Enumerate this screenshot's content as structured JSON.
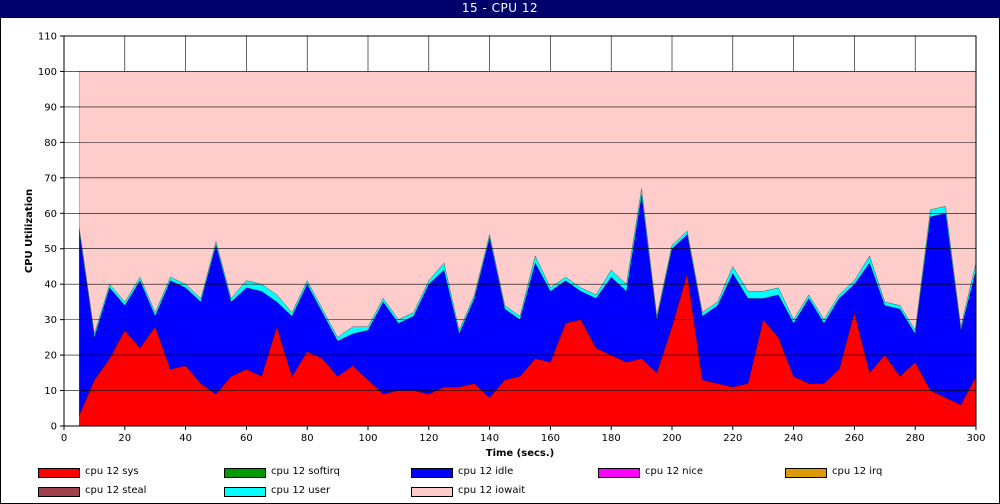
{
  "window": {
    "title": "15 - CPU 12"
  },
  "colors": {
    "sys": "#ff0000",
    "softirq": "#009900",
    "idle": "#0000ff",
    "nice": "#ff00ff",
    "irq": "#dd9900",
    "steal": "#a0404a",
    "user": "#00ffff",
    "iowait": "#ffcccc"
  },
  "legend": [
    {
      "label": "cpu 12 sys",
      "color": "#ff0000"
    },
    {
      "label": "cpu 12 softirq",
      "color": "#009900"
    },
    {
      "label": "cpu 12 idle",
      "color": "#0000ff"
    },
    {
      "label": "cpu 12 nice",
      "color": "#ff00ff"
    },
    {
      "label": "cpu 12 irq",
      "color": "#dd9900"
    },
    {
      "label": "cpu 12 steal",
      "color": "#a0404a"
    },
    {
      "label": "cpu 12 user",
      "color": "#00ffff"
    },
    {
      "label": "cpu 12 iowait",
      "color": "#ffcccc"
    }
  ],
  "chart_data": {
    "type": "area",
    "stacked": true,
    "title": "15 - CPU 12",
    "xlabel": "Time (secs.)",
    "ylabel": "CPU Utilization",
    "xlim": [
      0,
      300
    ],
    "ylim": [
      0,
      110
    ],
    "xticks": [
      0,
      20,
      40,
      60,
      80,
      100,
      120,
      140,
      160,
      180,
      200,
      220,
      240,
      260,
      280,
      300
    ],
    "yticks": [
      0,
      10,
      20,
      30,
      40,
      50,
      60,
      70,
      80,
      90,
      100,
      110
    ],
    "grid": true,
    "legend_position": "bottom",
    "x": [
      5,
      10,
      15,
      20,
      25,
      30,
      35,
      40,
      45,
      50,
      55,
      60,
      65,
      70,
      75,
      80,
      85,
      90,
      95,
      100,
      105,
      110,
      115,
      120,
      125,
      130,
      135,
      140,
      145,
      150,
      155,
      160,
      165,
      170,
      175,
      180,
      185,
      190,
      195,
      200,
      205,
      210,
      215,
      220,
      225,
      230,
      235,
      240,
      245,
      250,
      255,
      260,
      265,
      270,
      275,
      280,
      285,
      290,
      295,
      300
    ],
    "series": [
      {
        "name": "cpu 12 sys",
        "values": [
          3,
          13,
          19,
          27,
          22,
          28,
          16,
          17,
          12,
          9,
          14,
          16,
          14,
          28,
          14,
          21,
          19,
          14,
          17,
          13,
          9,
          10,
          10,
          9,
          11,
          11,
          12,
          8,
          13,
          14,
          19,
          18,
          29,
          30,
          22,
          20,
          18,
          19,
          15,
          28,
          43,
          13,
          12,
          11,
          12,
          30,
          25,
          14,
          12,
          12,
          16,
          32,
          15,
          20,
          14,
          18,
          10,
          8,
          6,
          14
        ]
      },
      {
        "name": "cpu 12 softirq",
        "values": [
          0,
          0,
          0,
          0,
          0,
          0,
          0,
          0,
          0,
          0,
          0,
          0,
          0,
          0,
          0,
          0,
          0,
          0,
          0,
          0,
          0,
          0,
          0,
          0,
          0,
          0,
          0,
          0,
          0,
          0,
          0,
          0,
          0,
          0,
          0,
          0,
          0,
          0,
          0,
          0,
          0,
          0,
          0,
          0,
          0,
          0,
          0,
          0,
          0,
          0,
          0,
          0,
          0,
          0,
          0,
          0,
          0,
          0,
          0,
          0
        ]
      },
      {
        "name": "cpu 12 idle",
        "values": [
          52,
          12,
          20,
          7,
          19,
          3,
          25,
          22,
          23,
          42,
          21,
          23,
          24,
          7,
          17,
          19,
          13,
          10,
          9,
          14,
          26,
          19,
          21,
          31,
          33,
          15,
          24,
          45,
          20,
          16,
          27,
          20,
          12,
          8,
          14,
          22,
          20,
          46,
          15,
          22,
          11,
          18,
          22,
          32,
          24,
          6,
          12,
          15,
          24,
          17,
          20,
          8,
          31,
          14,
          19,
          8,
          49,
          52,
          21,
          30
        ]
      },
      {
        "name": "cpu 12 nice",
        "values": [
          0,
          0,
          0,
          0,
          0,
          0,
          0,
          0,
          0,
          0,
          0,
          0,
          0,
          0,
          0,
          0,
          0,
          0,
          0,
          0,
          0,
          0,
          0,
          0,
          0,
          0,
          0,
          0,
          0,
          0,
          0,
          0,
          0,
          0,
          0,
          0,
          0,
          0,
          0,
          0,
          0,
          0,
          0,
          0,
          0,
          0,
          0,
          0,
          0,
          0,
          0,
          0,
          0,
          0,
          0,
          0,
          0,
          0,
          0,
          0
        ]
      },
      {
        "name": "cpu 12 irq",
        "values": [
          0,
          0,
          0,
          0,
          0,
          0,
          0,
          0,
          0,
          0,
          0,
          0,
          0,
          0,
          0,
          0,
          0,
          0,
          0,
          0,
          0,
          0,
          0,
          0,
          0,
          0,
          0,
          0,
          0,
          0,
          0,
          0,
          0,
          0,
          0,
          0,
          0,
          0,
          0,
          0,
          0,
          0,
          0,
          0,
          0,
          0,
          0,
          0,
          0,
          0,
          0,
          0,
          0,
          0,
          0,
          0,
          0,
          0,
          0,
          0
        ]
      },
      {
        "name": "cpu 12 steal",
        "values": [
          0,
          0,
          0,
          0,
          0,
          0,
          0,
          0,
          0,
          0,
          0,
          0,
          0,
          0,
          0,
          0,
          0,
          0,
          0,
          0,
          0,
          0,
          0,
          0,
          0,
          0,
          0,
          0,
          0,
          0,
          0,
          0,
          0,
          0,
          0,
          0,
          0,
          0,
          0,
          0,
          0,
          0,
          0,
          0,
          0,
          0,
          0,
          0,
          0,
          0,
          0,
          0,
          0,
          0,
          0,
          0,
          0,
          0,
          0,
          0
        ]
      },
      {
        "name": "cpu 12 user",
        "values": [
          1,
          1,
          1,
          1,
          1,
          1,
          1,
          1,
          1,
          1,
          1,
          2,
          2,
          2,
          1,
          1,
          1,
          1,
          2,
          1,
          1,
          1,
          1,
          1,
          2,
          1,
          1,
          1,
          1,
          1,
          2,
          1,
          1,
          1,
          1,
          2,
          2,
          2,
          1,
          1,
          1,
          1,
          1,
          2,
          2,
          2,
          2,
          1,
          1,
          1,
          1,
          1,
          2,
          1,
          1,
          1,
          2,
          2,
          1,
          2
        ]
      },
      {
        "name": "cpu 12 iowait",
        "values": [
          44,
          74,
          60,
          65,
          58,
          68,
          58,
          60,
          64,
          48,
          64,
          59,
          60,
          63,
          68,
          59,
          67,
          75,
          72,
          72,
          64,
          70,
          68,
          59,
          54,
          73,
          63,
          46,
          66,
          69,
          52,
          61,
          58,
          61,
          63,
          56,
          60,
          33,
          69,
          49,
          45,
          68,
          65,
          55,
          62,
          62,
          61,
          70,
          63,
          70,
          63,
          59,
          52,
          65,
          66,
          73,
          39,
          38,
          72,
          54
        ]
      }
    ]
  }
}
